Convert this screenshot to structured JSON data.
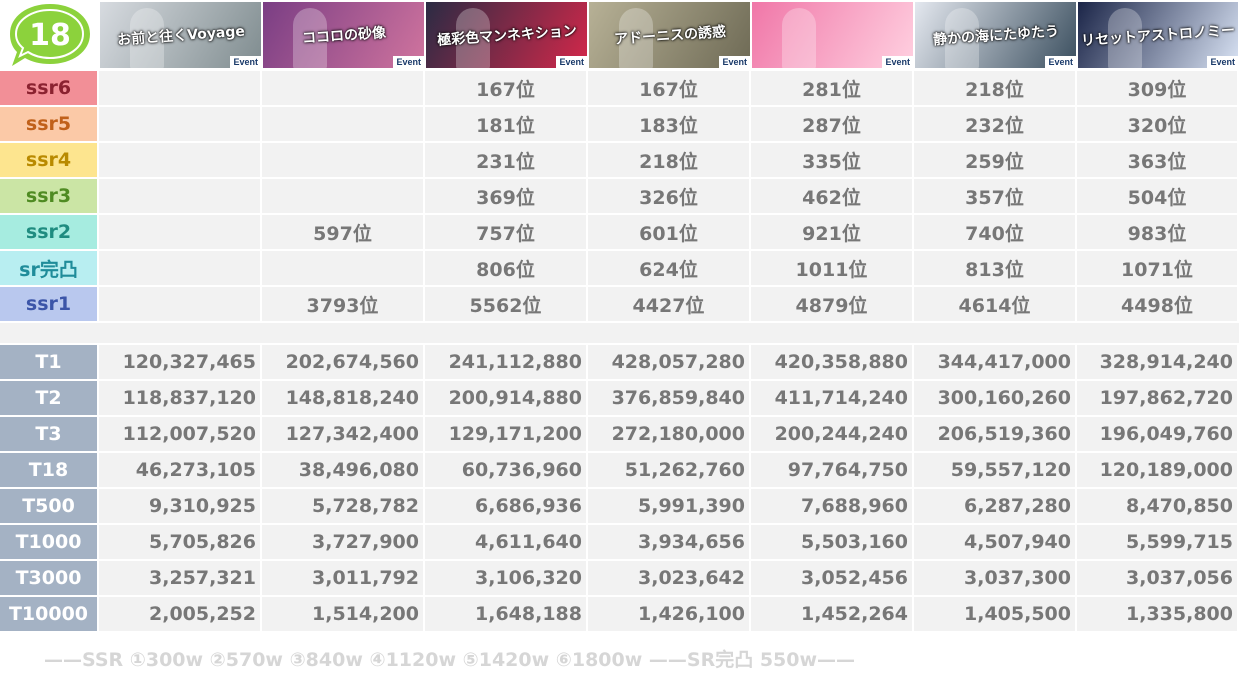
{
  "logo_text": "18",
  "events": [
    {
      "title": "お前と往くVoyage",
      "badge": "Event",
      "colors": [
        "#d7dbe0",
        "#7f8c8f"
      ]
    },
    {
      "title": "ココロの砂像",
      "badge": "Event",
      "colors": [
        "#7a3e84",
        "#d0749e"
      ]
    },
    {
      "title": "極彩色マンネキション",
      "badge": "Event",
      "colors": [
        "#2b2b44",
        "#d3284a"
      ]
    },
    {
      "title": "アドーニスの誘惑",
      "badge": "Event",
      "colors": [
        "#b7b196",
        "#6e6a55"
      ]
    },
    {
      "title": "",
      "badge": "Event",
      "colors": [
        "#f077a8",
        "#ffd0e0"
      ]
    },
    {
      "title": "静かの海にたゆたう",
      "badge": "Event",
      "colors": [
        "#e4e8ef",
        "#3b4f5f"
      ]
    },
    {
      "title": "リセットアストロノミー",
      "badge": "Event",
      "colors": [
        "#1b2548",
        "#d9e3f4"
      ]
    }
  ],
  "rank_rows": [
    {
      "label": "ssr6",
      "bg": "#f28f97",
      "fg": "#8b2230",
      "values": [
        "",
        "",
        "167位",
        "167位",
        "281位",
        "218位",
        "309位"
      ]
    },
    {
      "label": "ssr5",
      "bg": "#fbc9a7",
      "fg": "#c0601a",
      "values": [
        "",
        "",
        "181位",
        "183位",
        "287位",
        "232位",
        "320位"
      ]
    },
    {
      "label": "ssr4",
      "bg": "#fde58f",
      "fg": "#b98a00",
      "values": [
        "",
        "",
        "231位",
        "218位",
        "335位",
        "259位",
        "363位"
      ]
    },
    {
      "label": "ssr3",
      "bg": "#cbe5a5",
      "fg": "#4f8b22",
      "values": [
        "",
        "",
        "369位",
        "326位",
        "462位",
        "357位",
        "504位"
      ]
    },
    {
      "label": "ssr2",
      "bg": "#a6ece0",
      "fg": "#1f8c80",
      "values": [
        "",
        "597位",
        "757位",
        "601位",
        "921位",
        "740位",
        "983位"
      ]
    },
    {
      "label": "sr完凸",
      "bg": "#b8eef1",
      "fg": "#1f8c9a",
      "values": [
        "",
        "",
        "806位",
        "624位",
        "1011位",
        "813位",
        "1071位"
      ]
    },
    {
      "label": "ssr1",
      "bg": "#b9c8ee",
      "fg": "#3c55a8",
      "values": [
        "",
        "3793位",
        "5562位",
        "4427位",
        "4879位",
        "4614位",
        "4498位"
      ]
    }
  ],
  "tier_rows": [
    {
      "label": "T1",
      "values": [
        "120,327,465",
        "202,674,560",
        "241,112,880",
        "428,057,280",
        "420,358,880",
        "344,417,000",
        "328,914,240"
      ]
    },
    {
      "label": "T2",
      "values": [
        "118,837,120",
        "148,818,240",
        "200,914,880",
        "376,859,840",
        "411,714,240",
        "300,160,260",
        "197,862,720"
      ]
    },
    {
      "label": "T3",
      "values": [
        "112,007,520",
        "127,342,400",
        "129,171,200",
        "272,180,000",
        "200,244,240",
        "206,519,360",
        "196,049,760"
      ]
    },
    {
      "label": "T18",
      "values": [
        "46,273,105",
        "38,496,080",
        "60,736,960",
        "51,262,760",
        "97,764,750",
        "59,557,120",
        "120,189,000"
      ]
    },
    {
      "label": "T500",
      "values": [
        "9,310,925",
        "5,728,782",
        "6,686,936",
        "5,991,390",
        "7,688,960",
        "6,287,280",
        "8,470,850"
      ]
    },
    {
      "label": "T1000",
      "values": [
        "5,705,826",
        "3,727,900",
        "4,611,640",
        "3,934,656",
        "5,503,160",
        "4,507,940",
        "5,599,715"
      ]
    },
    {
      "label": "T3000",
      "values": [
        "3,257,321",
        "3,011,792",
        "3,106,320",
        "3,023,642",
        "3,052,456",
        "3,037,300",
        "3,037,056"
      ]
    },
    {
      "label": "T10000",
      "values": [
        "2,005,252",
        "1,514,200",
        "1,648,188",
        "1,426,100",
        "1,452,264",
        "1,405,500",
        "1,335,800"
      ]
    }
  ],
  "footer_text": "——SSR ①300w ②570w ③840w ④1120w ⑤1420w ⑥1800w ——SR完凸 550w——",
  "colors": {
    "cell_bg": "#f2f2f2",
    "text": "#777777",
    "tier_label_bg": "#a4b2c4",
    "logo_green": "#8cd23c"
  }
}
